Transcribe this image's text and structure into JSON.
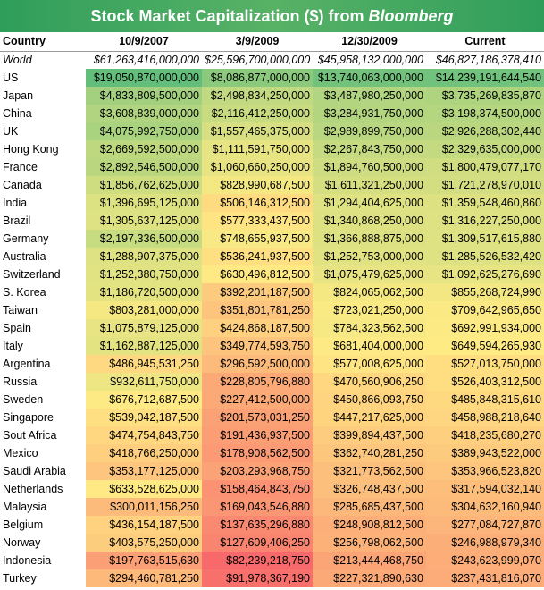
{
  "title": {
    "main": "Stock Market Capitalization ($) from",
    "source": "Bloomberg"
  },
  "chart_data": {
    "type": "table",
    "columns": [
      "Country",
      "10/9/2007",
      "3/9/2009",
      "12/30/2009",
      "Current"
    ],
    "world": {
      "name": "World",
      "values": [
        "$61,263,416,000,000",
        "$25,596,700,000,000",
        "$45,958,132,000,000",
        "$46,827,186,378,410"
      ]
    },
    "rows": [
      {
        "name": "US",
        "values": [
          "$19,050,870,000,000",
          "$8,086,877,000,000",
          "$13,740,063,000,000",
          "$14,239,191,644,540"
        ]
      },
      {
        "name": "Japan",
        "values": [
          "$4,833,809,500,000",
          "$2,498,834,250,000",
          "$3,487,980,250,000",
          "$3,735,269,835,870"
        ]
      },
      {
        "name": "China",
        "values": [
          "$3,608,839,000,000",
          "$2,116,412,250,000",
          "$3,284,931,750,000",
          "$3,198,374,500,000"
        ]
      },
      {
        "name": "UK",
        "values": [
          "$4,075,992,750,000",
          "$1,557,465,375,000",
          "$2,989,899,750,000",
          "$2,926,288,302,440"
        ]
      },
      {
        "name": "Hong Kong",
        "values": [
          "$2,669,592,500,000",
          "$1,111,591,750,000",
          "$2,267,843,750,000",
          "$2,329,635,000,000"
        ]
      },
      {
        "name": "France",
        "values": [
          "$2,892,546,500,000",
          "$1,060,660,250,000",
          "$1,894,760,500,000",
          "$1,800,479,077,170"
        ]
      },
      {
        "name": "Canada",
        "values": [
          "$1,856,762,625,000",
          "$828,990,687,500",
          "$1,611,321,250,000",
          "$1,721,278,970,010"
        ]
      },
      {
        "name": "India",
        "values": [
          "$1,396,695,125,000",
          "$506,146,312,500",
          "$1,294,404,625,000",
          "$1,359,548,460,860"
        ]
      },
      {
        "name": "Brazil",
        "values": [
          "$1,305,637,125,000",
          "$577,333,437,500",
          "$1,340,868,250,000",
          "$1,316,227,250,000"
        ]
      },
      {
        "name": "Germany",
        "values": [
          "$2,197,336,500,000",
          "$748,655,937,500",
          "$1,366,888,875,000",
          "$1,309,517,615,880"
        ]
      },
      {
        "name": "Australia",
        "values": [
          "$1,288,907,375,000",
          "$536,241,937,500",
          "$1,252,753,000,000",
          "$1,285,526,532,420"
        ]
      },
      {
        "name": "Switzerland",
        "values": [
          "$1,252,380,750,000",
          "$630,496,812,500",
          "$1,075,479,625,000",
          "$1,092,625,276,690"
        ]
      },
      {
        "name": "S. Korea",
        "values": [
          "$1,186,720,500,000",
          "$392,201,187,500",
          "$824,065,062,500",
          "$855,268,724,990"
        ]
      },
      {
        "name": "Taiwan",
        "values": [
          "$803,281,000,000",
          "$351,801,781,250",
          "$723,021,250,000",
          "$709,642,965,650"
        ]
      },
      {
        "name": "Spain",
        "values": [
          "$1,075,879,125,000",
          "$424,868,187,500",
          "$784,323,562,500",
          "$692,991,934,000"
        ]
      },
      {
        "name": "Italy",
        "values": [
          "$1,162,887,125,000",
          "$349,774,593,750",
          "$681,404,000,000",
          "$649,594,265,930"
        ]
      },
      {
        "name": "Argentina",
        "values": [
          "$486,945,531,250",
          "$296,592,500,000",
          "$577,008,625,000",
          "$527,013,750,000"
        ]
      },
      {
        "name": "Russia",
        "values": [
          "$932,611,750,000",
          "$228,805,796,880",
          "$470,560,906,250",
          "$526,403,312,500"
        ]
      },
      {
        "name": "Sweden",
        "values": [
          "$676,712,687,500",
          "$227,412,500,000",
          "$450,866,093,750",
          "$485,848,315,610"
        ]
      },
      {
        "name": "Singapore",
        "values": [
          "$539,042,187,500",
          "$201,573,031,250",
          "$447,217,625,000",
          "$458,988,218,640"
        ]
      },
      {
        "name": "Sout Africa",
        "values": [
          "$474,754,843,750",
          "$191,436,937,500",
          "$399,894,437,500",
          "$418,235,680,270"
        ]
      },
      {
        "name": "Mexico",
        "values": [
          "$418,766,250,000",
          "$178,908,562,500",
          "$362,740,281,250",
          "$389,943,522,000"
        ]
      },
      {
        "name": "Saudi Arabia",
        "values": [
          "$353,177,125,000",
          "$203,293,968,750",
          "$321,773,562,500",
          "$353,966,523,820"
        ]
      },
      {
        "name": "Netherlands",
        "values": [
          "$633,528,625,000",
          "$158,464,843,750",
          "$326,748,437,500",
          "$317,594,032,140"
        ]
      },
      {
        "name": "Malaysia",
        "values": [
          "$300,011,156,250",
          "$169,043,546,880",
          "$285,685,437,500",
          "$304,632,160,940"
        ]
      },
      {
        "name": "Belgium",
        "values": [
          "$436,154,187,500",
          "$137,635,296,880",
          "$248,908,812,500",
          "$277,084,727,870"
        ]
      },
      {
        "name": "Norway",
        "values": [
          "$403,575,250,000",
          "$127,609,406,250",
          "$256,798,062,500",
          "$246,988,979,340"
        ]
      },
      {
        "name": "Indonesia",
        "values": [
          "$197,763,515,630",
          "$82,239,218,750",
          "$213,444,468,750",
          "$243,623,999,070"
        ]
      },
      {
        "name": "Turkey",
        "values": [
          "$294,460,781,250",
          "$91,978,367,190",
          "$227,321,890,630",
          "$237,431,816,070"
        ]
      }
    ],
    "color_scale": {
      "high": "#63be7b",
      "mid": "#ffeb84",
      "low": "#f8696b"
    }
  }
}
